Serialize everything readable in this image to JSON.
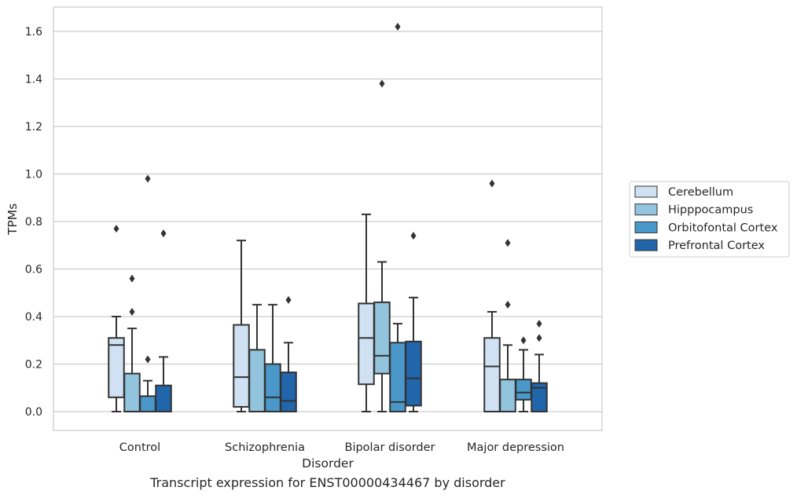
{
  "caption": "Transcript expression for ENST00000434467 by disorder",
  "chart_data": {
    "type": "box",
    "xlabel": "Disorder",
    "ylabel": "TPMs",
    "ylim": [
      -0.08,
      1.7
    ],
    "yticks": [
      0.0,
      0.2,
      0.4,
      0.6,
      0.8,
      1.0,
      1.2,
      1.4,
      1.6
    ],
    "ytick_labels": [
      "0.0",
      "0.2",
      "0.4",
      "0.6",
      "0.8",
      "1.0",
      "1.2",
      "1.4",
      "1.6"
    ],
    "grid": "horizontal",
    "legend_position": "right",
    "categories": [
      "Control",
      "Schizophrenia",
      "Bipolar disorder",
      "Major depression"
    ],
    "series": [
      {
        "name": "Cerebellum",
        "color": "#cfe1f2",
        "boxes": [
          {
            "whisker_low": 0.0,
            "q1": 0.06,
            "median": 0.28,
            "q3": 0.31,
            "whisker_high": 0.4,
            "outliers": [
              0.77
            ]
          },
          {
            "whisker_low": 0.0,
            "q1": 0.02,
            "median": 0.145,
            "q3": 0.365,
            "whisker_high": 0.72,
            "outliers": []
          },
          {
            "whisker_low": 0.0,
            "q1": 0.115,
            "median": 0.31,
            "q3": 0.455,
            "whisker_high": 0.83,
            "outliers": []
          },
          {
            "whisker_low": 0.0,
            "q1": 0.0,
            "median": 0.19,
            "q3": 0.31,
            "whisker_high": 0.42,
            "outliers": [
              0.96
            ]
          }
        ]
      },
      {
        "name": "Hipppocampus",
        "color": "#93c4de",
        "boxes": [
          {
            "whisker_low": 0.0,
            "q1": 0.0,
            "median": 0.0,
            "q3": 0.16,
            "whisker_high": 0.35,
            "outliers": [
              0.42,
              0.56
            ]
          },
          {
            "whisker_low": 0.0,
            "q1": 0.0,
            "median": 0.0,
            "q3": 0.26,
            "whisker_high": 0.45,
            "outliers": []
          },
          {
            "whisker_low": 0.0,
            "q1": 0.16,
            "median": 0.235,
            "q3": 0.46,
            "whisker_high": 0.63,
            "outliers": [
              1.38
            ]
          },
          {
            "whisker_low": 0.0,
            "q1": 0.0,
            "median": 0.0,
            "q3": 0.135,
            "whisker_high": 0.28,
            "outliers": [
              0.45,
              0.71
            ]
          }
        ]
      },
      {
        "name": "Orbitofontal Cortex",
        "color": "#4a98c9",
        "boxes": [
          {
            "whisker_low": 0.0,
            "q1": 0.0,
            "median": 0.0,
            "q3": 0.065,
            "whisker_high": 0.13,
            "outliers": [
              0.22,
              0.98
            ]
          },
          {
            "whisker_low": 0.0,
            "q1": 0.0,
            "median": 0.06,
            "q3": 0.2,
            "whisker_high": 0.45,
            "outliers": []
          },
          {
            "whisker_low": 0.0,
            "q1": 0.0,
            "median": 0.04,
            "q3": 0.29,
            "whisker_high": 0.37,
            "outliers": [
              1.62
            ]
          },
          {
            "whisker_low": 0.0,
            "q1": 0.05,
            "median": 0.08,
            "q3": 0.135,
            "whisker_high": 0.26,
            "outliers": [
              0.3
            ]
          }
        ]
      },
      {
        "name": "Prefrontal Cortex",
        "color": "#2165ab",
        "boxes": [
          {
            "whisker_low": 0.0,
            "q1": 0.0,
            "median": 0.0,
            "q3": 0.11,
            "whisker_high": 0.23,
            "outliers": [
              0.75
            ]
          },
          {
            "whisker_low": 0.0,
            "q1": 0.0,
            "median": 0.045,
            "q3": 0.165,
            "whisker_high": 0.29,
            "outliers": [
              0.47
            ]
          },
          {
            "whisker_low": 0.0,
            "q1": 0.025,
            "median": 0.14,
            "q3": 0.295,
            "whisker_high": 0.48,
            "outliers": [
              0.74
            ]
          },
          {
            "whisker_low": 0.0,
            "q1": 0.0,
            "median": 0.1,
            "q3": 0.12,
            "whisker_high": 0.24,
            "outliers": [
              0.31,
              0.37
            ]
          }
        ]
      }
    ]
  }
}
